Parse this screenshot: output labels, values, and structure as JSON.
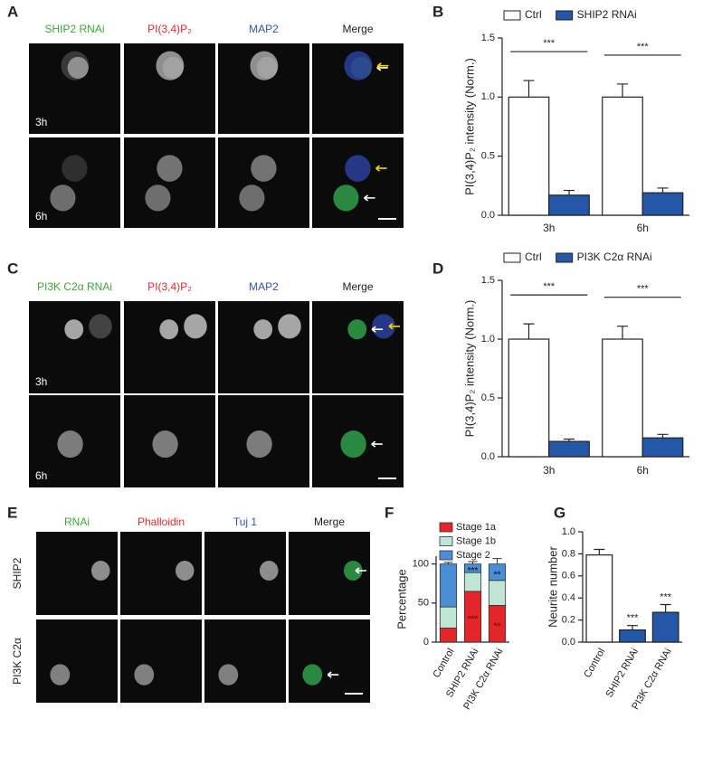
{
  "figure_panels": [
    {
      "label": "A",
      "columns": [
        {
          "text": "SHIP2 RNAi",
          "color": "#3aa935"
        },
        {
          "text": "PI(3,4)P₂",
          "color": "#e8262b"
        },
        {
          "text": "MAP2",
          "color": "#2f56b0"
        },
        {
          "text": "Merge",
          "color": "#222222"
        }
      ],
      "rows": [
        "3h",
        "6h"
      ]
    },
    {
      "label": "C",
      "columns": [
        {
          "text": "PI3K C2α RNAi",
          "color": "#3aa935"
        },
        {
          "text": "PI(3,4)P₂",
          "color": "#e8262b"
        },
        {
          "text": "MAP2",
          "color": "#2f56b0"
        },
        {
          "text": "Merge",
          "color": "#222222"
        }
      ],
      "rows": [
        "3h",
        "6h"
      ]
    },
    {
      "label": "E",
      "columns": [
        {
          "text": "RNAi",
          "color": "#3aa935"
        },
        {
          "text": "Phalloidin",
          "color": "#e8262b"
        },
        {
          "text": "Tuj 1",
          "color": "#2f56b0"
        },
        {
          "text": "Merge",
          "color": "#222222"
        }
      ],
      "rows": [
        "SHIP2",
        "PI3K C2α"
      ]
    }
  ],
  "chart_data": [
    {
      "label": "B",
      "type": "bar",
      "ylabel": "PI(3,4)P₂ intensity (Norm.)",
      "categories": [
        "3h",
        "6h"
      ],
      "series": [
        {
          "name": "Ctrl",
          "color": "#ffffff",
          "values": [
            1.0,
            1.0
          ],
          "errors": [
            0.14,
            0.11
          ]
        },
        {
          "name": "SHIP2 RNAi",
          "color": "#2457a7",
          "values": [
            0.17,
            0.19
          ],
          "errors": [
            0.04,
            0.04
          ]
        }
      ],
      "significance": [
        "***",
        "***"
      ],
      "ylim": [
        0,
        1.5
      ],
      "yticks": [
        {
          "value": 0,
          "label": "0.0"
        },
        0.5,
        {
          "value": 1,
          "label": "1.0"
        },
        1.5
      ],
      "legend": "top"
    },
    {
      "label": "D",
      "type": "bar",
      "ylabel": "PI(3,4)P₂ intensity (Norm.)",
      "categories": [
        "3h",
        "6h"
      ],
      "series": [
        {
          "name": "Ctrl",
          "color": "#ffffff",
          "values": [
            1.0,
            1.0
          ],
          "errors": [
            0.13,
            0.11
          ]
        },
        {
          "name": "PI3K C2α RNAi",
          "color": "#2457a7",
          "values": [
            0.13,
            0.16
          ],
          "errors": [
            0.02,
            0.03
          ]
        }
      ],
      "significance": [
        "***",
        "***"
      ],
      "ylim": [
        0,
        1.5
      ],
      "yticks": [
        {
          "value": 0,
          "label": "0.0"
        },
        0.5,
        {
          "value": 1,
          "label": "1.0"
        },
        1.5
      ],
      "legend": "top"
    },
    {
      "label": "F",
      "type": "stacked_bar",
      "ylabel": "Percentage",
      "categories": [
        "Control",
        "SHIP2 RNAi",
        "PI3K C2α RNAi"
      ],
      "series": [
        {
          "name": "Stage 1a",
          "color": "#e3262a",
          "values": [
            18,
            65,
            47
          ],
          "errors": [
            2,
            2,
            15
          ],
          "significance": [
            null,
            "***",
            "**"
          ],
          "significance_color": "#8b1010"
        },
        {
          "name": "Stage 1b",
          "color": "#bfe6d5",
          "values": [
            27,
            24,
            32
          ],
          "errors": [
            2,
            3,
            6
          ]
        },
        {
          "name": "Stage 2",
          "color": "#4a8ed3",
          "values": [
            55,
            11,
            21
          ],
          "errors": [
            2,
            3,
            7
          ],
          "significance": [
            null,
            "***",
            "**"
          ],
          "significance_color": "#1b2f66"
        }
      ],
      "ylim": [
        0,
        110
      ],
      "yticks": [
        0,
        50,
        100
      ],
      "legend": "top-left"
    },
    {
      "label": "G",
      "type": "bar",
      "ylabel": "Neurite number",
      "categories": [
        "Control",
        "SHIP2 RNAi",
        "PI3K C2α RNAi"
      ],
      "series": [
        {
          "colors": [
            "#ffffff",
            "#2457a7",
            "#2457a7"
          ],
          "values": [
            0.79,
            0.11,
            0.27
          ],
          "errors": [
            0.05,
            0.04,
            0.07
          ]
        }
      ],
      "significance": [
        null,
        "***",
        "***"
      ],
      "ylim": [
        0,
        1.0
      ],
      "yticks": [
        {
          "value": 0,
          "label": "0.0"
        },
        0.2,
        0.4,
        0.6,
        0.8,
        {
          "value": 1,
          "label": "1.0"
        }
      ]
    }
  ]
}
